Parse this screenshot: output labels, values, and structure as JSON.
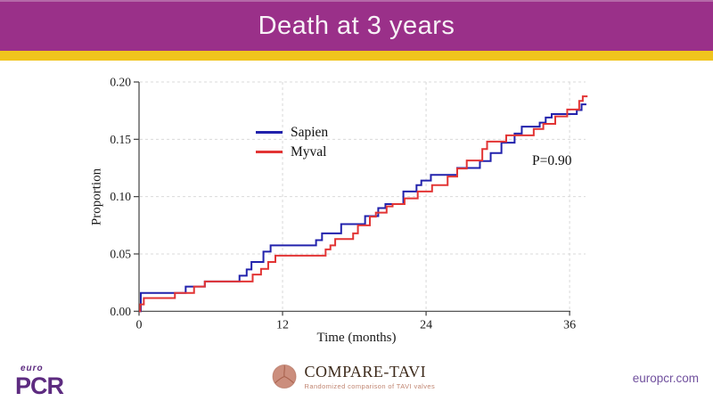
{
  "header": {
    "title": "Death at 3 years",
    "bar_color": "#9a3089",
    "bar_highlight": "#b569a8",
    "accent_color": "#f0c41d"
  },
  "chart_data": {
    "type": "line",
    "subtype": "kaplan-meier-step",
    "title": "Death at 3 years",
    "xlabel": "Time (months)",
    "ylabel": "Proportion",
    "annotation": "P=0.90",
    "xlim": [
      0,
      37.5
    ],
    "ylim": [
      0,
      0.2
    ],
    "xticks": [
      0,
      12,
      24,
      36
    ],
    "xtick_labels": [
      "0",
      "12",
      "24",
      "36"
    ],
    "yticks": [
      0,
      0.05,
      0.1,
      0.15,
      0.2
    ],
    "ytick_labels": [
      "0.00",
      "0.05",
      "0.10",
      "0.15",
      "0.20"
    ],
    "grid": "dashed",
    "grid_color": "#d9d9d9",
    "axis_color": "#404040",
    "legend_position": "inside-upper-left",
    "series": [
      {
        "name": "Sapien",
        "color": "#2222ac",
        "steps": [
          [
            0,
            0
          ],
          [
            0.15,
            0.016
          ],
          [
            3.9,
            0.0215
          ],
          [
            5.5,
            0.026
          ],
          [
            8.4,
            0.031
          ],
          [
            9.0,
            0.0365
          ],
          [
            9.4,
            0.043
          ],
          [
            10.4,
            0.052
          ],
          [
            11.0,
            0.0575
          ],
          [
            14.8,
            0.062
          ],
          [
            15.3,
            0.068
          ],
          [
            16.9,
            0.076
          ],
          [
            18.9,
            0.083
          ],
          [
            20.0,
            0.09
          ],
          [
            20.6,
            0.0935
          ],
          [
            22.1,
            0.1045
          ],
          [
            23.2,
            0.11
          ],
          [
            23.6,
            0.114
          ],
          [
            24.4,
            0.119
          ],
          [
            26.6,
            0.125
          ],
          [
            28.5,
            0.131
          ],
          [
            29.4,
            0.138
          ],
          [
            30.3,
            0.147
          ],
          [
            31.4,
            0.155
          ],
          [
            32.0,
            0.161
          ],
          [
            33.5,
            0.1645
          ],
          [
            34.0,
            0.169
          ],
          [
            34.5,
            0.172
          ],
          [
            36.6,
            0.1755
          ],
          [
            37.0,
            0.1805
          ],
          [
            37.4,
            0.1805
          ]
        ]
      },
      {
        "name": "Myval",
        "color": "#e23434",
        "steps": [
          [
            0,
            0
          ],
          [
            0.1,
            0.006
          ],
          [
            0.4,
            0.0115
          ],
          [
            3.0,
            0.016
          ],
          [
            4.6,
            0.0215
          ],
          [
            5.5,
            0.026
          ],
          [
            9.5,
            0.032
          ],
          [
            10.2,
            0.037
          ],
          [
            10.8,
            0.043
          ],
          [
            11.4,
            0.0485
          ],
          [
            15.6,
            0.054
          ],
          [
            16.0,
            0.0575
          ],
          [
            16.4,
            0.063
          ],
          [
            17.9,
            0.068
          ],
          [
            18.3,
            0.075
          ],
          [
            19.3,
            0.0825
          ],
          [
            19.8,
            0.086
          ],
          [
            20.7,
            0.0915
          ],
          [
            21.2,
            0.0935
          ],
          [
            22.2,
            0.0985
          ],
          [
            23.3,
            0.1045
          ],
          [
            24.5,
            0.11
          ],
          [
            25.8,
            0.1175
          ],
          [
            26.6,
            0.1245
          ],
          [
            27.4,
            0.1315
          ],
          [
            28.7,
            0.1415
          ],
          [
            29.1,
            0.148
          ],
          [
            30.7,
            0.1535
          ],
          [
            33.0,
            0.159
          ],
          [
            33.8,
            0.1635
          ],
          [
            34.8,
            0.17
          ],
          [
            35.8,
            0.176
          ],
          [
            36.8,
            0.1835
          ],
          [
            37.1,
            0.1875
          ],
          [
            37.5,
            0.1875
          ]
        ]
      }
    ]
  },
  "footer": {
    "europcr_logo": {
      "euro": "euro",
      "pcr": "PCR",
      "color": "#5d2b80"
    },
    "compare_tavi": {
      "name": "COMPARE-TAVI",
      "subtitle": "Randomized comparison of TAVI valves",
      "icon": "aortic-valve-icon",
      "text_color": "#3d2a1b",
      "subtitle_color": "#c08571",
      "icon_fill": "#cb8e7d",
      "icon_stroke": "#a8614d"
    },
    "website": "europcr.com",
    "website_color": "#71519e"
  }
}
